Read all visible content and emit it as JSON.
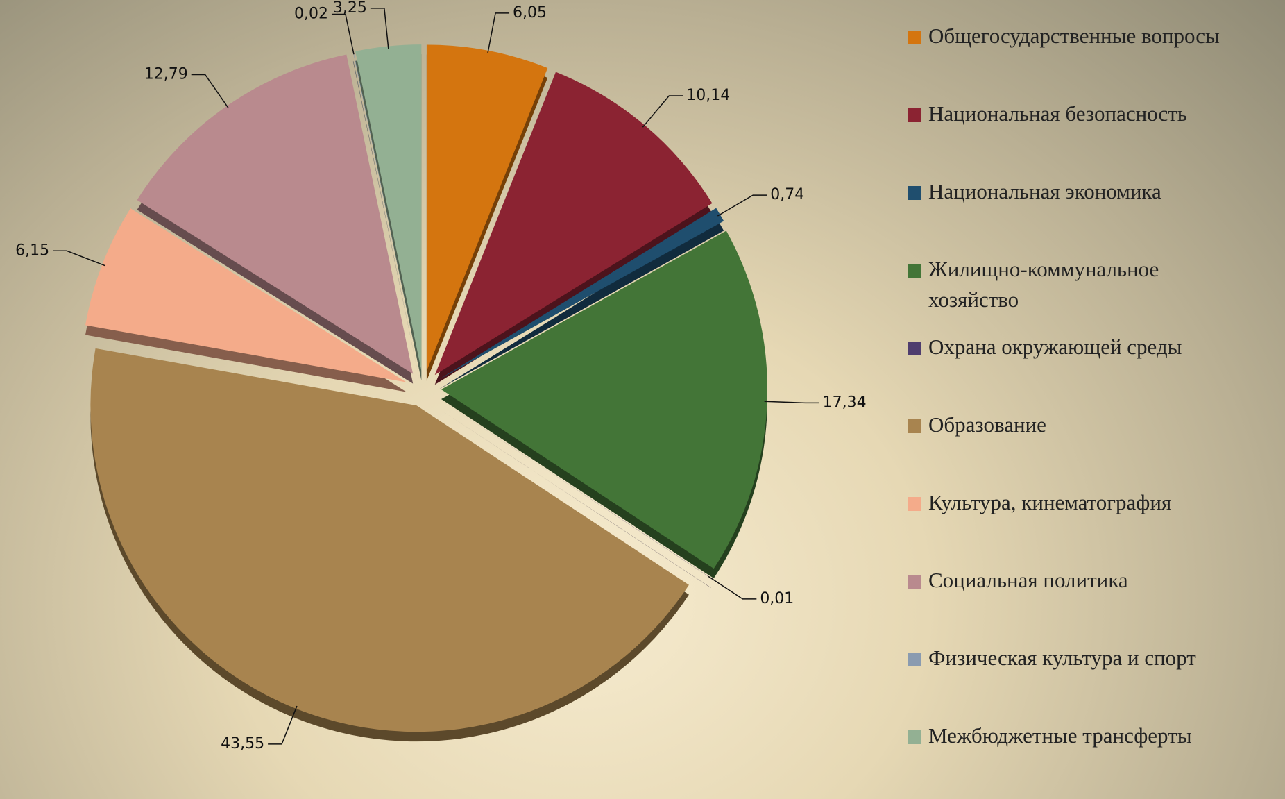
{
  "chart_data": {
    "type": "pie",
    "categories": [
      "Общегосударственные вопросы",
      "Национальная безопасность",
      "Национальная экономика",
      "Жилищно-коммунальное хозяйство",
      "Охрана окружающей среды",
      "Образование",
      "Культура, кинематография",
      "Социальная политика",
      "Физическая культура и спорт",
      "Межбюджетные трансферты"
    ],
    "values": [
      6.05,
      10.14,
      0.74,
      17.34,
      0.01,
      43.55,
      6.15,
      12.79,
      0.02,
      3.25
    ],
    "value_labels": [
      "6,05",
      "10,14",
      "0,74",
      "17,34",
      "0,01",
      "43,55",
      "6,15",
      "12,79",
      "0,02",
      "3,25"
    ],
    "colors": [
      "#d4750f",
      "#8b2332",
      "#1f4e6e",
      "#437537",
      "#4f3d6e",
      "#a8844f",
      "#f4ab8a",
      "#b98a8e",
      "#8a9bb0",
      "#93b093"
    ],
    "legend": "right"
  }
}
